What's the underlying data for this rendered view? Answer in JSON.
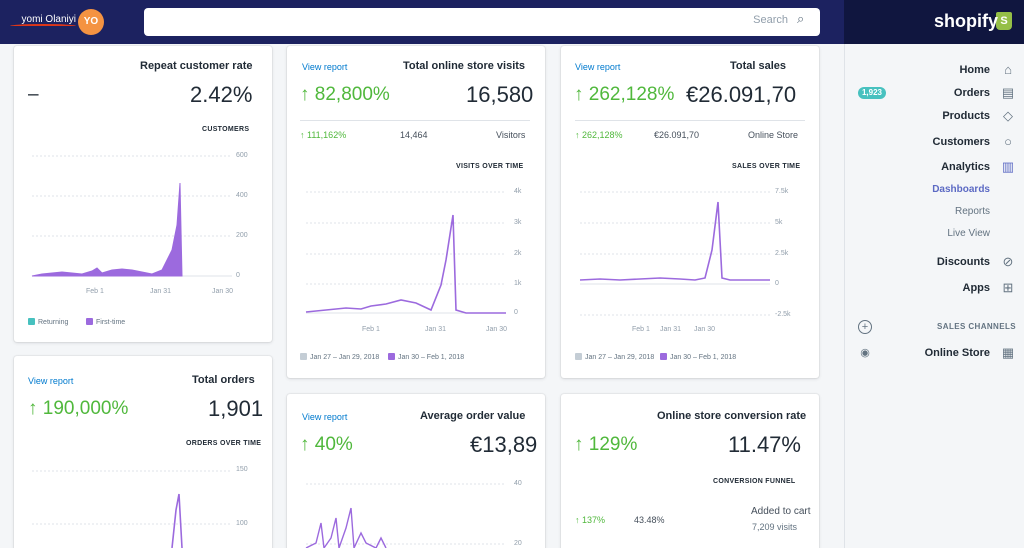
{
  "topbar": {
    "search_placeholder": "Search",
    "avatar_initials": "YO",
    "username": "yomi Olaniyi",
    "logo": "shopify"
  },
  "sidebar": {
    "items": [
      {
        "label": "Home",
        "icon": "home-icon"
      },
      {
        "label": "Orders",
        "icon": "orders-icon",
        "badge": "1,923"
      },
      {
        "label": "Products",
        "icon": "tag-icon"
      },
      {
        "label": "Customers",
        "icon": "person-icon"
      },
      {
        "label": "Analytics",
        "icon": "bar-chart-icon"
      }
    ],
    "analytics_sub": [
      "Dashboards",
      "Reports",
      "Live View"
    ],
    "items_after": [
      {
        "label": "Discounts",
        "icon": "discount-icon"
      },
      {
        "label": "Apps",
        "icon": "apps-icon"
      }
    ],
    "sales_channels_label": "SALES CHANNELS",
    "online_store": "Online Store"
  },
  "cards": {
    "total_sales": {
      "title": "Total sales",
      "link": "View report",
      "value": "€26.091,70",
      "change": "↑ 262,128%",
      "row_label": "Online Store",
      "row_value": "€26.091,70",
      "row_change": "↑ 262,128%",
      "chart_title": "SALES OVER TIME",
      "y_ticks": [
        "7.5k",
        "5k",
        "2.5k",
        "0",
        "-2.5k"
      ],
      "x_ticks": [
        "Jan 30",
        "Jan 31",
        "Feb 1"
      ],
      "legend": [
        "Jan 30 – Feb 1, 2018",
        "Jan 27 – Jan 29, 2018"
      ]
    },
    "visits": {
      "title": "Total online store visits",
      "link": "View report",
      "value": "16,580",
      "change": "↑ 82,800%",
      "row_label": "Visitors",
      "row_value": "14,464",
      "row_change": "↑ 111,162%",
      "chart_title": "VISITS OVER TIME",
      "y_ticks": [
        "4k",
        "3k",
        "2k",
        "1k",
        "0"
      ],
      "x_ticks": [
        "Jan 30",
        "Jan 31",
        "Feb 1"
      ],
      "legend": [
        "Jan 30 – Feb 1, 2018",
        "Jan 27 – Jan 29, 2018"
      ]
    },
    "repeat": {
      "title": "Repeat customer rate",
      "value": "2.42%",
      "dash": "–",
      "chart_title": "CUSTOMERS",
      "y_ticks": [
        "600",
        "400",
        "200",
        "0"
      ],
      "x_ticks": [
        "Jan 30",
        "Jan 31",
        "Feb 1"
      ],
      "legend": [
        "First-time",
        "Returning"
      ]
    },
    "conversion": {
      "title": "Online store conversion rate",
      "value": "11.47%",
      "change": "↑ 129%",
      "chart_title": "CONVERSION FUNNEL",
      "row_label": "Added to cart",
      "row_sub": "7,209 visits",
      "row_value": "43.48%",
      "row_change": "↑ 137%"
    },
    "aov": {
      "title": "Average order value",
      "link": "View report",
      "value": "€13,89",
      "change": "↑ 40%",
      "y_ticks": [
        "40",
        "20"
      ]
    },
    "orders": {
      "title": "Total orders",
      "link": "View report",
      "value": "1,901",
      "change": "↑ 190,000%",
      "chart_title": "ORDERS OVER TIME",
      "y_ticks": [
        "150",
        "100"
      ]
    }
  },
  "colors": {
    "topbar": "#1c2260",
    "accent_purple": "#9c6ade",
    "positive_green": "#50b83c",
    "link_blue": "#007ace",
    "returning_teal": "#47c1bf"
  }
}
